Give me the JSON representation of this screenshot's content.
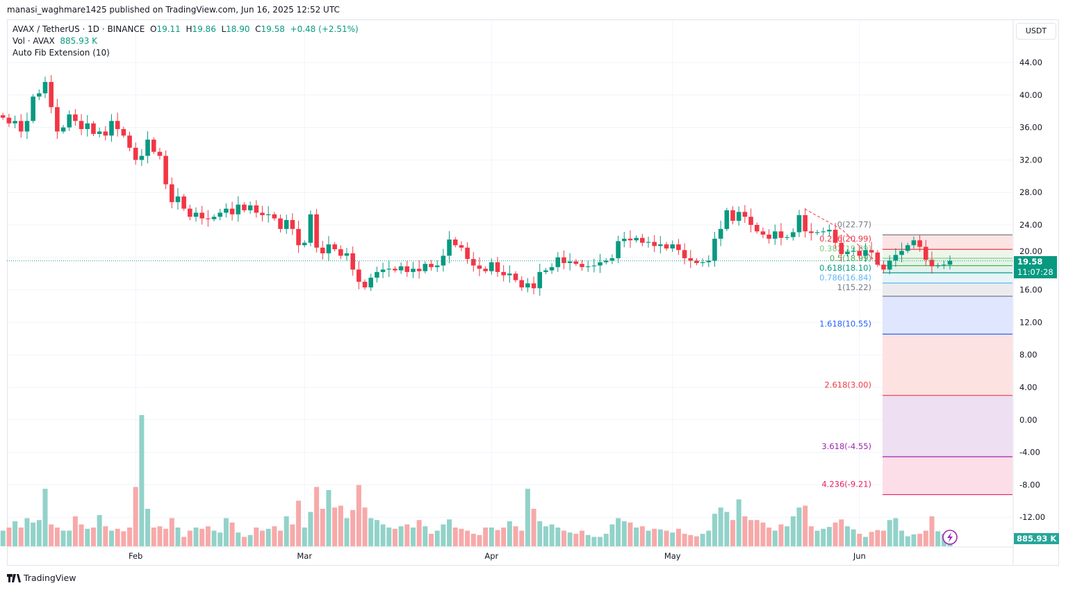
{
  "published": "manasi_waghmare1425 published on TradingView.com, Jun 16, 2025 12:52 UTC",
  "legend": {
    "symbol": "AVAX / TetherUS · 1D · BINANCE",
    "o_label": "O",
    "o": "19.11",
    "h_label": "H",
    "h": "19.86",
    "l_label": "L",
    "l": "18.90",
    "c_label": "C",
    "c": "19.58",
    "change": "+0.48 (+2.51%)",
    "vol_label": "Vol · AVAX",
    "vol": "885.93 K",
    "indicator": "Auto Fib Extension (10)"
  },
  "currency_button": "USDT",
  "price_tag": {
    "price": "19.58",
    "countdown": "11:07:28"
  },
  "volume_tag": "885.93 K",
  "brand": "TradingView",
  "colors": {
    "up": "#089981",
    "down": "#f23645",
    "up_vol": "#92d2c9",
    "down_vol": "#f7a9a9"
  },
  "chart_data": {
    "type": "candlestick",
    "start_date": "2025-01-10",
    "y_ticks": [
      44,
      40,
      36,
      32,
      28,
      24,
      20,
      16,
      12,
      8,
      4,
      0,
      -4,
      -8,
      -12
    ],
    "y_tick_labels": [
      "44.00",
      "40.00",
      "36.00",
      "32.00",
      "28.00",
      "24.00",
      "20.00",
      "16.00",
      "12.00",
      "8.00",
      "4.00",
      "0.00",
      "-4.00",
      "-8.00",
      "-12.00"
    ],
    "x_ticks": [
      {
        "label": "Feb",
        "day_index": 22
      },
      {
        "label": "Mar",
        "day_index": 50
      },
      {
        "label": "Apr",
        "day_index": 81
      },
      {
        "label": "May",
        "day_index": 111
      },
      {
        "label": "Jun",
        "day_index": 142
      }
    ],
    "closes": [
      37.2,
      36.5,
      36.8,
      35.5,
      36.8,
      39.8,
      40.2,
      41.6,
      38.5,
      35.5,
      36,
      37.6,
      36.8,
      35.8,
      36.5,
      35.2,
      35.5,
      35,
      36.8,
      35.8,
      35,
      33.5,
      32,
      32.5,
      34.5,
      33,
      32.5,
      29,
      26.8,
      27.5,
      26,
      25,
      25.5,
      24.8,
      24.7,
      25,
      25.5,
      26,
      25.3,
      26.5,
      25.8,
      26.4,
      25.5,
      25.2,
      25.3,
      24.8,
      23.5,
      24.6,
      23.5,
      21.5,
      21.8,
      25.3,
      21.2,
      20.5,
      21.6,
      21,
      20.2,
      20.5,
      18.5,
      17,
      16.3,
      17.5,
      18.2,
      18.5,
      18.6,
      18.4,
      18.9,
      18.2,
      18.6,
      18.3,
      19.2,
      18.8,
      19,
      20.2,
      22.2,
      21.5,
      21.2,
      19.8,
      19,
      18.6,
      18.3,
      19.4,
      18.2,
      17.8,
      18,
      17.2,
      16.3,
      16.8,
      16.2,
      18.2,
      18.4,
      18.8,
      20,
      19.3,
      19.5,
      19.2,
      18.8,
      18.9,
      19,
      19.4,
      19.6,
      19.9,
      22,
      22.3,
      22.1,
      22.4,
      21.8,
      21.9,
      21.4,
      21.6,
      21.1,
      21.6,
      20.9,
      19.9,
      19.6,
      19.3,
      19.4,
      19.6,
      22.3,
      23.5,
      25.8,
      24.5,
      25.6,
      25,
      24,
      23.2,
      22.8,
      22.3,
      23.2,
      22.4,
      22.5,
      23.1,
      25.2,
      23.2,
      23,
      23.1,
      23.2,
      23.4,
      21.8,
      20.4,
      20.7,
      20.8,
      20.2,
      20.9,
      20.6,
      19.1,
      18.5,
      19.6,
      20.3,
      20.8,
      21.5,
      22.1,
      21.3,
      19.7,
      18.9,
      19.0,
      19.1,
      19.58
    ],
    "volumes_millions": [
      2.5,
      3,
      4,
      3,
      4.5,
      3.8,
      4.2,
      9.2,
      3.5,
      3,
      2.5,
      2.5,
      4.8,
      3.5,
      2.8,
      3,
      5,
      3.2,
      2.5,
      2.8,
      2.4,
      3,
      9.5,
      21,
      6,
      3,
      3.2,
      2.8,
      4.5,
      3,
      1.5,
      2.5,
      3,
      2.8,
      3.2,
      2.5,
      2.2,
      4.5,
      3.8,
      2.2,
      1.5,
      1.8,
      3,
      2.5,
      2.8,
      3.2,
      2.5,
      4.8,
      3.5,
      7.3,
      3,
      5.5,
      9.5,
      6,
      9,
      6.2,
      6.5,
      4.5,
      5.8,
      9.8,
      6.2,
      4.5,
      4.2,
      3.5,
      3,
      2.8,
      3.2,
      3.5,
      3,
      4.2,
      3.2,
      2,
      2.5,
      3.5,
      4.3,
      3,
      2.8,
      2.5,
      2,
      1.8,
      3,
      3,
      2.6,
      3,
      4,
      3.2,
      2.5,
      9.2,
      6,
      4,
      3.2,
      3.5,
      3,
      2.5,
      2.2,
      2,
      2.5,
      1.8,
      1.5,
      1.5,
      2,
      3.5,
      4.5,
      4,
      3.8,
      3,
      3.2,
      2.5,
      2.8,
      2.7,
      2.5,
      2.2,
      2.8,
      2,
      1.8,
      1.6,
      2,
      2.5,
      5.2,
      6.2,
      5.5,
      4.2,
      7.5,
      4.8,
      4.2,
      4.2,
      3.8,
      3,
      2.5,
      3.5,
      3.2,
      4.8,
      6.2,
      6.5,
      3.2,
      2.5,
      2.8,
      3.1,
      3.8,
      4.3,
      3.2,
      2.7,
      2,
      1.5,
      2.3,
      2.6,
      2.5,
      4.2,
      4.5,
      2.5,
      1.6,
      1.9,
      2,
      2.5,
      4.8,
      2.4,
      2,
      0.89
    ],
    "fib_extension": [
      {
        "ratio": "0",
        "price": 22.77,
        "label": "0(22.77)",
        "color": "#787b86",
        "fill": "#fce4e4"
      },
      {
        "ratio": "0.236",
        "price": 20.99,
        "label": "0.236(20.99)",
        "color": "#f23645",
        "fill": "#edf6ea"
      },
      {
        "ratio": "0.382",
        "price": 19.89,
        "label": "0.382(19.89)",
        "color": "#81c784",
        "fill": "#e6f4e7"
      },
      {
        "ratio": "0.5",
        "price": 18.99,
        "label": "0.5(18.99)",
        "color": "#4caf50",
        "fill": "#e2f2ee"
      },
      {
        "ratio": "0.618",
        "price": 18.1,
        "label": "0.618(18.10)",
        "color": "#089981",
        "fill": "#e6f5f9"
      },
      {
        "ratio": "0.786",
        "price": 16.84,
        "label": "0.786(16.84)",
        "color": "#64b5f6",
        "fill": "#ebebee"
      },
      {
        "ratio": "1",
        "price": 15.22,
        "label": "1(15.22)",
        "color": "#787b86",
        "fill": "#dfe6fd"
      },
      {
        "ratio": "1.618",
        "price": 10.55,
        "label": "1.618(10.55)",
        "color": "#2962ff",
        "fill": "#fde2e2"
      },
      {
        "ratio": "2.618",
        "price": 3.0,
        "label": "2.618(3.00)",
        "color": "#f23645",
        "fill": "#eedff2"
      },
      {
        "ratio": "3.618",
        "price": -4.55,
        "label": "3.618(-4.55)",
        "color": "#9c27b0",
        "fill": "#fcdee8"
      },
      {
        "ratio": "4.236",
        "price": -9.21,
        "label": "4.236(-9.21)",
        "color": "#e91e63",
        "fill": null
      }
    ]
  }
}
